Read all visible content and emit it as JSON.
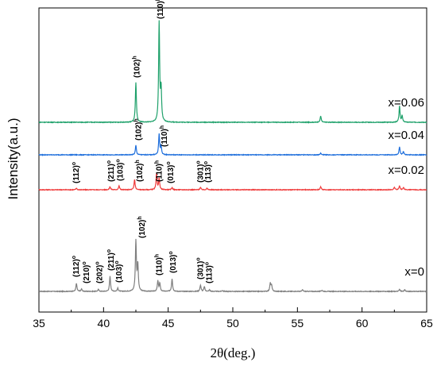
{
  "chart_data": {
    "type": "line",
    "xlabel": "2θ(deg.)",
    "ylabel": "Intensity(a.u.)",
    "xlim": [
      35,
      65
    ],
    "x_ticks": [
      "35",
      "40",
      "45",
      "50",
      "55",
      "60",
      "65"
    ],
    "grid": false,
    "series": [
      {
        "name": "x=0",
        "color": "#7f7f7f",
        "baseline": 0,
        "peaks": [
          {
            "x": 37.9,
            "h": 10
          },
          {
            "x": 38.3,
            "h": 3
          },
          {
            "x": 39.6,
            "h": 2.5
          },
          {
            "x": 40.5,
            "h": 19
          },
          {
            "x": 41.1,
            "h": 4
          },
          {
            "x": 42.5,
            "h": 63
          },
          {
            "x": 42.65,
            "h": 33
          },
          {
            "x": 44.2,
            "h": 13
          },
          {
            "x": 44.35,
            "h": 10
          },
          {
            "x": 45.3,
            "h": 16
          },
          {
            "x": 47.5,
            "h": 8
          },
          {
            "x": 47.8,
            "h": 6
          },
          {
            "x": 48.2,
            "h": 2
          },
          {
            "x": 49.2,
            "h": 1.2
          },
          {
            "x": 52.9,
            "h": 10
          },
          {
            "x": 53.0,
            "h": 7
          },
          {
            "x": 55.4,
            "h": 2
          },
          {
            "x": 56.9,
            "h": 1.5
          },
          {
            "x": 62.9,
            "h": 2.5
          },
          {
            "x": 63.3,
            "h": 2
          }
        ]
      },
      {
        "name": "x=0.02",
        "color": "#ef3b3b",
        "baseline": 128,
        "peaks": [
          {
            "x": 37.9,
            "h": 2
          },
          {
            "x": 40.5,
            "h": 4
          },
          {
            "x": 41.2,
            "h": 5
          },
          {
            "x": 42.4,
            "h": 13
          },
          {
            "x": 44.1,
            "h": 20
          },
          {
            "x": 44.3,
            "h": 14
          },
          {
            "x": 45.3,
            "h": 3
          },
          {
            "x": 47.5,
            "h": 3
          },
          {
            "x": 48.0,
            "h": 2
          },
          {
            "x": 56.8,
            "h": 4
          },
          {
            "x": 62.5,
            "h": 3
          },
          {
            "x": 62.9,
            "h": 5
          },
          {
            "x": 63.2,
            "h": 3
          }
        ]
      },
      {
        "name": "x=0.04",
        "color": "#1f6fdc",
        "baseline": 172,
        "peaks": [
          {
            "x": 42.5,
            "h": 12
          },
          {
            "x": 44.3,
            "h": 26
          },
          {
            "x": 44.45,
            "h": 10
          },
          {
            "x": 56.8,
            "h": 2
          },
          {
            "x": 62.9,
            "h": 10
          },
          {
            "x": 63.2,
            "h": 4
          }
        ]
      },
      {
        "name": "x=0.06",
        "color": "#1fa16b",
        "baseline": 213,
        "peaks": [
          {
            "x": 42.5,
            "h": 50
          },
          {
            "x": 44.3,
            "h": 125
          },
          {
            "x": 44.45,
            "h": 40
          },
          {
            "x": 56.8,
            "h": 8
          },
          {
            "x": 62.9,
            "h": 20
          },
          {
            "x": 63.1,
            "h": 8
          }
        ]
      }
    ],
    "annotations": [
      {
        "text": "(112)",
        "sup": "o",
        "x": 37.9,
        "series": 0,
        "above": 14
      },
      {
        "text": "(210)",
        "sup": "o",
        "x": 38.7,
        "series": 0,
        "above": 6
      },
      {
        "text": "(202)",
        "sup": "o",
        "x": 39.7,
        "series": 0,
        "above": 6
      },
      {
        "text": "(211)",
        "sup": "o",
        "x": 40.6,
        "series": 0,
        "above": 22
      },
      {
        "text": "(103)",
        "sup": "o",
        "x": 41.2,
        "series": 0,
        "above": 7
      },
      {
        "text": "(102)",
        "sup": "h",
        "x": 43.0,
        "series": 0,
        "above": 63
      },
      {
        "text": "(110)",
        "sup": "h",
        "x": 44.3,
        "series": 0,
        "above": 16
      },
      {
        "text": "(013)",
        "sup": "o",
        "x": 45.4,
        "series": 0,
        "above": 19
      },
      {
        "text": "(301)",
        "sup": "o",
        "x": 47.5,
        "series": 0,
        "above": 11
      },
      {
        "text": "(113)",
        "sup": "o",
        "x": 48.2,
        "series": 0,
        "above": 6
      },
      {
        "text": "(112)",
        "sup": "o",
        "x": 37.9,
        "series": 1,
        "above": 4
      },
      {
        "text": "(211)",
        "sup": "o",
        "x": 40.6,
        "series": 1,
        "above": 6
      },
      {
        "text": "(103)",
        "sup": "o",
        "x": 41.3,
        "series": 1,
        "above": 7
      },
      {
        "text": "(102)",
        "sup": "h",
        "x": 42.8,
        "series": 1,
        "above": 6
      },
      {
        "text": "(110)",
        "sup": "h",
        "x": 44.3,
        "series": 1,
        "above": 6
      },
      {
        "text": "(013)",
        "sup": "o",
        "x": 45.2,
        "series": 1,
        "above": 4
      },
      {
        "text": "(301)",
        "sup": "o",
        "x": 47.5,
        "series": 1,
        "above": 5
      },
      {
        "text": "(113)",
        "sup": "o",
        "x": 48.1,
        "series": 1,
        "above": 5
      },
      {
        "text": "(102)",
        "sup": "h",
        "x": 42.7,
        "series": 2,
        "above": 14
      },
      {
        "text": "(110)",
        "sup": "h",
        "x": 44.7,
        "series": 2,
        "above": 6
      },
      {
        "text": "(102)",
        "sup": "h",
        "x": 42.6,
        "series": 3,
        "above": 52
      },
      {
        "text": "(110)",
        "sup": "h",
        "x": 44.4,
        "series": 3,
        "above": 126
      }
    ]
  }
}
